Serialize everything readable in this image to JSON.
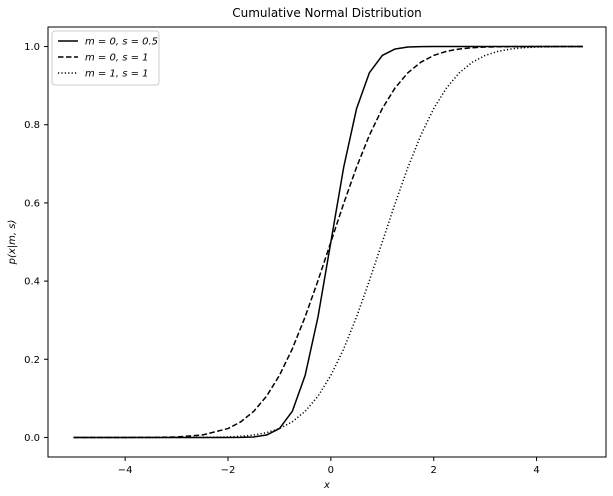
{
  "chart_data": {
    "type": "line",
    "title": "Cumulative Normal Distribution",
    "xlabel": "x",
    "ylabel": "p(x|m, s)",
    "xlim": [
      -5.5,
      5.35
    ],
    "ylim": [
      -0.05,
      1.05
    ],
    "x_ticks": [
      -4,
      -2,
      0,
      2,
      4
    ],
    "x_tick_labels": [
      "−4",
      "−2",
      "0",
      "2",
      "4"
    ],
    "y_ticks": [
      0.0,
      0.2,
      0.4,
      0.6,
      0.8,
      1.0
    ],
    "y_tick_labels": [
      "0.0",
      "0.2",
      "0.4",
      "0.6",
      "0.8",
      "1.0"
    ],
    "grid": false,
    "legend_position": "top-left",
    "x": [
      -5.0,
      -4.5,
      -4.0,
      -3.5,
      -3.0,
      -2.5,
      -2.0,
      -1.75,
      -1.5,
      -1.25,
      -1.0,
      -0.75,
      -0.5,
      -0.25,
      0.0,
      0.25,
      0.5,
      0.75,
      1.0,
      1.25,
      1.5,
      1.75,
      2.0,
      2.25,
      2.5,
      2.75,
      3.0,
      3.25,
      3.5,
      3.75,
      4.0,
      4.5,
      4.9
    ],
    "series": [
      {
        "name": "m = 0,  s = 0.5",
        "line_style": "solid",
        "values": [
          0.0,
          0.0,
          0.0,
          0.0,
          0.0,
          0.0,
          0.0,
          0.0002,
          0.0013,
          0.0062,
          0.0228,
          0.0668,
          0.1587,
          0.3085,
          0.5,
          0.6915,
          0.8413,
          0.9332,
          0.9772,
          0.9938,
          0.9987,
          0.9998,
          1.0,
          1.0,
          1.0,
          1.0,
          1.0,
          1.0,
          1.0,
          1.0,
          1.0,
          1.0,
          1.0
        ]
      },
      {
        "name": "m = 0,  s = 1",
        "line_style": "dashed",
        "values": [
          0.0,
          0.0,
          0.0,
          0.0002,
          0.0013,
          0.0062,
          0.0228,
          0.0401,
          0.0668,
          0.1056,
          0.1587,
          0.2266,
          0.3085,
          0.4013,
          0.5,
          0.5987,
          0.6915,
          0.7734,
          0.8413,
          0.8944,
          0.9332,
          0.9599,
          0.9772,
          0.9878,
          0.9938,
          0.997,
          0.9987,
          0.9994,
          0.9998,
          0.9999,
          1.0,
          1.0,
          1.0
        ]
      },
      {
        "name": "m = 1,  s = 1",
        "line_style": "dotted",
        "values": [
          0.0,
          0.0,
          0.0,
          0.0,
          0.0,
          0.0002,
          0.0013,
          0.003,
          0.0062,
          0.0122,
          0.0228,
          0.0401,
          0.0668,
          0.1056,
          0.1587,
          0.2266,
          0.3085,
          0.4013,
          0.5,
          0.5987,
          0.6915,
          0.7734,
          0.8413,
          0.8944,
          0.9332,
          0.9599,
          0.9772,
          0.9878,
          0.9938,
          0.997,
          0.9987,
          0.9998,
          0.9999
        ]
      }
    ]
  }
}
